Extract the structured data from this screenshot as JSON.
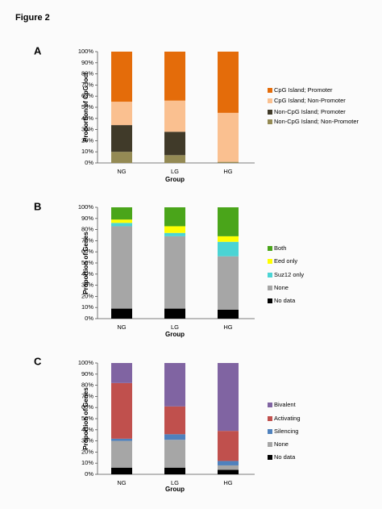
{
  "figure_title": "Figure 2",
  "chart_data": [
    {
      "type": "bar",
      "stacked": true,
      "percent": true,
      "panel_label": "A",
      "categories": [
        "NG",
        "LG",
        "HG"
      ],
      "xlabel": "Group",
      "ylabel": "Proportion of CpG loci",
      "ylim": [
        0,
        100
      ],
      "yticks": [
        "0%",
        "10%",
        "20%",
        "30%",
        "40%",
        "50%",
        "60%",
        "70%",
        "80%",
        "90%",
        "100%"
      ],
      "grid": false,
      "legend_position": "right",
      "series": [
        {
          "name": "Non-CpG Island; Non-Promoter",
          "color": "#948a54",
          "values": [
            10,
            7,
            1
          ]
        },
        {
          "name": "Non-CpG Island; Promoter",
          "color": "#403a29",
          "values": [
            24,
            21,
            0
          ]
        },
        {
          "name": "CpG Island; Non-Promoter",
          "color": "#fac090",
          "values": [
            21,
            28,
            44
          ]
        },
        {
          "name": "CpG Island; Promoter",
          "color": "#e46c0a",
          "values": [
            45,
            44,
            55
          ]
        }
      ]
    },
    {
      "type": "bar",
      "stacked": true,
      "percent": true,
      "panel_label": "B",
      "categories": [
        "NG",
        "LG",
        "HG"
      ],
      "xlabel": "Group",
      "ylabel": "Proportion of Genes",
      "ylim": [
        0,
        100
      ],
      "yticks": [
        "0%",
        "10%",
        "20%",
        "30%",
        "40%",
        "50%",
        "60%",
        "70%",
        "80%",
        "90%",
        "100%"
      ],
      "grid": false,
      "legend_position": "right",
      "series": [
        {
          "name": "No data",
          "color": "#000000",
          "values": [
            9,
            9,
            8
          ]
        },
        {
          "name": "None",
          "color": "#a6a6a6",
          "values": [
            74,
            65,
            48
          ]
        },
        {
          "name": "Suz12 only",
          "color": "#4bd4d4",
          "values": [
            3,
            3,
            13
          ]
        },
        {
          "name": "Eed only",
          "color": "#ffff00",
          "values": [
            3,
            6,
            5
          ]
        },
        {
          "name": "Both",
          "color": "#4aa51a",
          "values": [
            11,
            17,
            26
          ]
        }
      ]
    },
    {
      "type": "bar",
      "stacked": true,
      "percent": true,
      "panel_label": "C",
      "categories": [
        "NG",
        "LG",
        "HG"
      ],
      "xlabel": "Group",
      "ylabel": "Proportion of Genes",
      "ylim": [
        0,
        100
      ],
      "yticks": [
        "0%",
        "10%",
        "20%",
        "30%",
        "40%",
        "50%",
        "60%",
        "70%",
        "80%",
        "90%",
        "100%"
      ],
      "grid": false,
      "legend_position": "right",
      "series": [
        {
          "name": "No data",
          "color": "#000000",
          "values": [
            6,
            6,
            4
          ]
        },
        {
          "name": "None",
          "color": "#a6a6a6",
          "values": [
            24,
            25,
            4
          ]
        },
        {
          "name": "Silencing",
          "color": "#4f81bd",
          "values": [
            2,
            5,
            4
          ]
        },
        {
          "name": "Activating",
          "color": "#c0504d",
          "values": [
            50,
            25,
            27
          ]
        },
        {
          "name": "Bivalent",
          "color": "#8064a2",
          "values": [
            18,
            39,
            61
          ]
        }
      ]
    }
  ]
}
